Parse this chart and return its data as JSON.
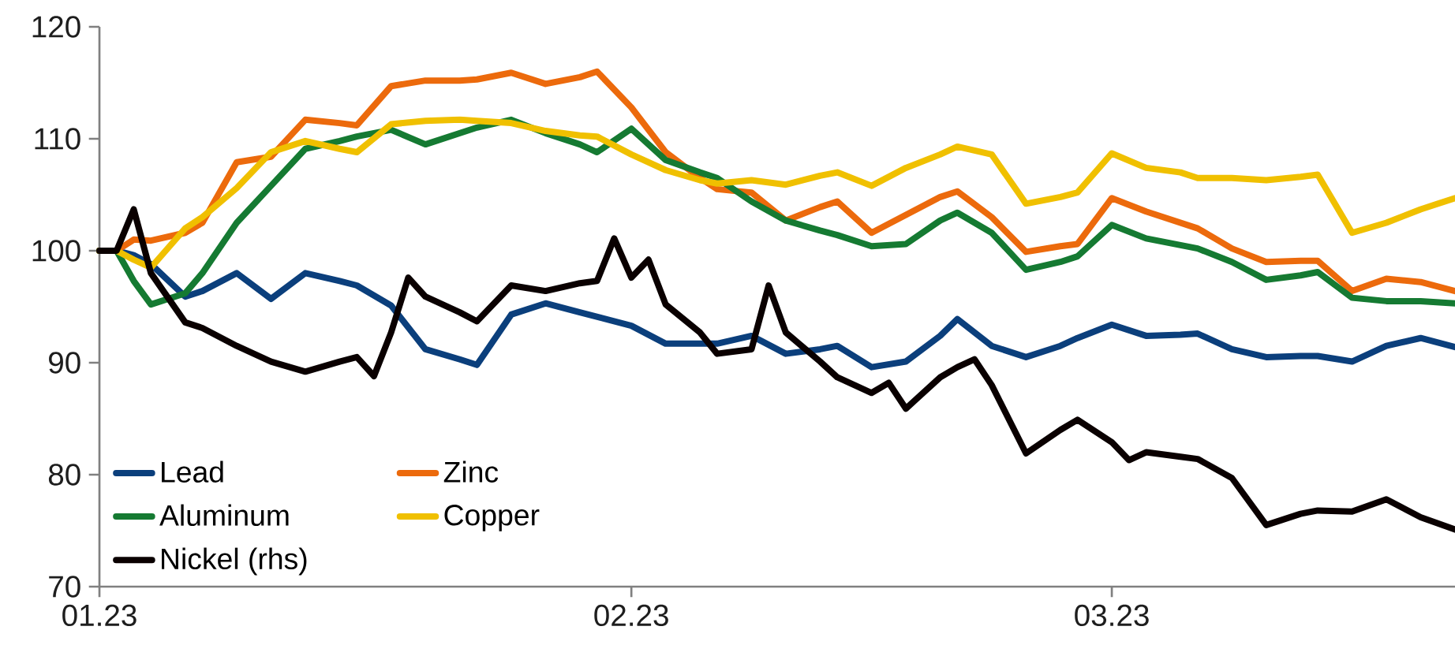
{
  "chart_data": {
    "type": "line",
    "x": [
      "2023-01-01",
      "2023-01-02",
      "2023-01-03",
      "2023-01-04",
      "2023-01-06",
      "2023-01-07",
      "2023-01-09",
      "2023-01-11",
      "2023-01-13",
      "2023-01-15",
      "2023-01-16",
      "2023-01-18",
      "2023-01-20",
      "2023-01-22",
      "2023-01-23",
      "2023-01-25",
      "2023-01-27",
      "2023-01-29",
      "2023-01-30",
      "2023-02-01",
      "2023-02-03",
      "2023-02-05",
      "2023-02-06",
      "2023-02-08",
      "2023-02-10",
      "2023-02-12",
      "2023-02-13",
      "2023-02-15",
      "2023-02-17",
      "2023-02-19",
      "2023-02-20",
      "2023-02-22",
      "2023-02-24",
      "2023-02-26",
      "2023-02-27",
      "2023-03-01",
      "2023-03-03",
      "2023-03-05",
      "2023-03-06",
      "2023-03-08",
      "2023-03-10",
      "2023-03-12",
      "2023-03-13",
      "2023-03-15",
      "2023-03-17",
      "2023-03-19",
      "2023-03-21"
    ],
    "series": [
      {
        "name": "Lead",
        "color": "#0b3f7c",
        "values": [
          100,
          100,
          99.6,
          98.8,
          95.9,
          96.4,
          98.0,
          95.7,
          98.0,
          97.3,
          96.9,
          95.1,
          91.2,
          90.3,
          89.8,
          94.3,
          95.3,
          94.5,
          94.1,
          93.3,
          91.7,
          91.7,
          91.7,
          92.4,
          90.8,
          91.2,
          91.5,
          89.6,
          90.1,
          92.4,
          93.9,
          91.5,
          90.5,
          91.5,
          92.2,
          93.4,
          92.4,
          92.5,
          92.6,
          91.2,
          90.5,
          90.6,
          90.6,
          90.1,
          91.5,
          92.2,
          91.4
        ]
      },
      {
        "name": "Zinc",
        "color": "#ec6a0c",
        "values": [
          100,
          100,
          101.0,
          100.9,
          101.6,
          102.5,
          107.9,
          108.4,
          111.7,
          111.4,
          111.2,
          114.7,
          115.2,
          115.2,
          115.3,
          115.9,
          114.9,
          115.5,
          116.0,
          112.8,
          108.8,
          106.5,
          105.5,
          105.2,
          102.7,
          103.9,
          104.4,
          101.6,
          103.2,
          104.8,
          105.3,
          103.0,
          99.9,
          100.4,
          100.6,
          104.7,
          103.5,
          102.5,
          102.0,
          100.2,
          99.0,
          99.1,
          99.1,
          96.4,
          97.5,
          97.2,
          96.4
        ]
      },
      {
        "name": "Aluminum",
        "color": "#157a32",
        "values": [
          100,
          100,
          97.3,
          95.2,
          96.2,
          98.0,
          102.5,
          105.8,
          109.1,
          109.8,
          110.2,
          110.8,
          109.5,
          110.5,
          111.0,
          111.7,
          110.5,
          109.5,
          108.8,
          110.9,
          108.1,
          107.0,
          106.5,
          104.4,
          102.7,
          101.8,
          101.4,
          100.4,
          100.6,
          102.7,
          103.4,
          101.6,
          98.3,
          99.0,
          99.5,
          102.3,
          101.1,
          100.5,
          100.2,
          99.0,
          97.4,
          97.8,
          98.1,
          95.8,
          95.5,
          95.5,
          95.3
        ]
      },
      {
        "name": "Copper",
        "color": "#f0c000",
        "values": [
          100,
          100,
          99.2,
          98.5,
          102.0,
          103.0,
          105.6,
          108.8,
          109.8,
          109.1,
          108.8,
          111.3,
          111.6,
          111.7,
          111.6,
          111.4,
          110.7,
          110.3,
          110.2,
          108.6,
          107.2,
          106.3,
          106.0,
          106.3,
          105.9,
          106.7,
          107.0,
          105.8,
          107.4,
          108.6,
          109.3,
          108.6,
          104.2,
          104.8,
          105.2,
          108.7,
          107.4,
          107.0,
          106.5,
          106.5,
          106.3,
          106.6,
          106.8,
          101.6,
          102.5,
          103.7,
          104.7
        ]
      },
      {
        "name": "Nickel (rhs)",
        "color": "#0a0000",
        "x": [
          "2023-01-01",
          "2023-01-02",
          "2023-01-03",
          "2023-01-04",
          "2023-01-06",
          "2023-01-07",
          "2023-01-09",
          "2023-01-11",
          "2023-01-13",
          "2023-01-15",
          "2023-01-16",
          "2023-01-17",
          "2023-01-18",
          "2023-01-19",
          "2023-01-20",
          "2023-01-22",
          "2023-01-23",
          "2023-01-25",
          "2023-01-27",
          "2023-01-29",
          "2023-01-30",
          "2023-01-31",
          "2023-02-01",
          "2023-02-02",
          "2023-02-03",
          "2023-02-05",
          "2023-02-06",
          "2023-02-08",
          "2023-02-09",
          "2023-02-10",
          "2023-02-12",
          "2023-02-13",
          "2023-02-15",
          "2023-02-16",
          "2023-02-17",
          "2023-02-19",
          "2023-02-20",
          "2023-02-21",
          "2023-02-22",
          "2023-02-24",
          "2023-02-26",
          "2023-02-27",
          "2023-03-01",
          "2023-03-02",
          "2023-03-03",
          "2023-03-05",
          "2023-03-06",
          "2023-03-08",
          "2023-03-10",
          "2023-03-12",
          "2023-03-13",
          "2023-03-15",
          "2023-03-17",
          "2023-03-19",
          "2023-03-21"
        ],
        "values": [
          100,
          100,
          103.7,
          98.0,
          93.6,
          93.1,
          91.5,
          90.1,
          89.2,
          90.1,
          90.5,
          88.8,
          92.7,
          97.6,
          95.9,
          94.5,
          93.7,
          96.9,
          96.4,
          97.1,
          97.3,
          101.1,
          97.6,
          99.2,
          95.2,
          92.7,
          90.8,
          91.2,
          96.9,
          92.7,
          90.1,
          88.7,
          87.3,
          88.2,
          85.9,
          88.7,
          89.6,
          90.3,
          88.0,
          81.9,
          84.0,
          84.9,
          82.9,
          81.3,
          82.0,
          81.6,
          81.4,
          79.7,
          75.5,
          76.5,
          76.8,
          76.7,
          77.8,
          76.2,
          75.1
        ]
      }
    ],
    "xlim": [
      "2023-01-01",
      "2023-03-21"
    ],
    "xticks": [
      {
        "value": "2023-01-01",
        "label": "01.23"
      },
      {
        "value": "2023-02-01",
        "label": "02.23"
      },
      {
        "value": "2023-03-01",
        "label": "03.23"
      }
    ],
    "ylim": [
      70,
      120
    ],
    "yticks": [
      70,
      80,
      90,
      100,
      110,
      120
    ],
    "grid": false,
    "legend": "bottom left",
    "line_style": "solid",
    "marker": "none"
  }
}
